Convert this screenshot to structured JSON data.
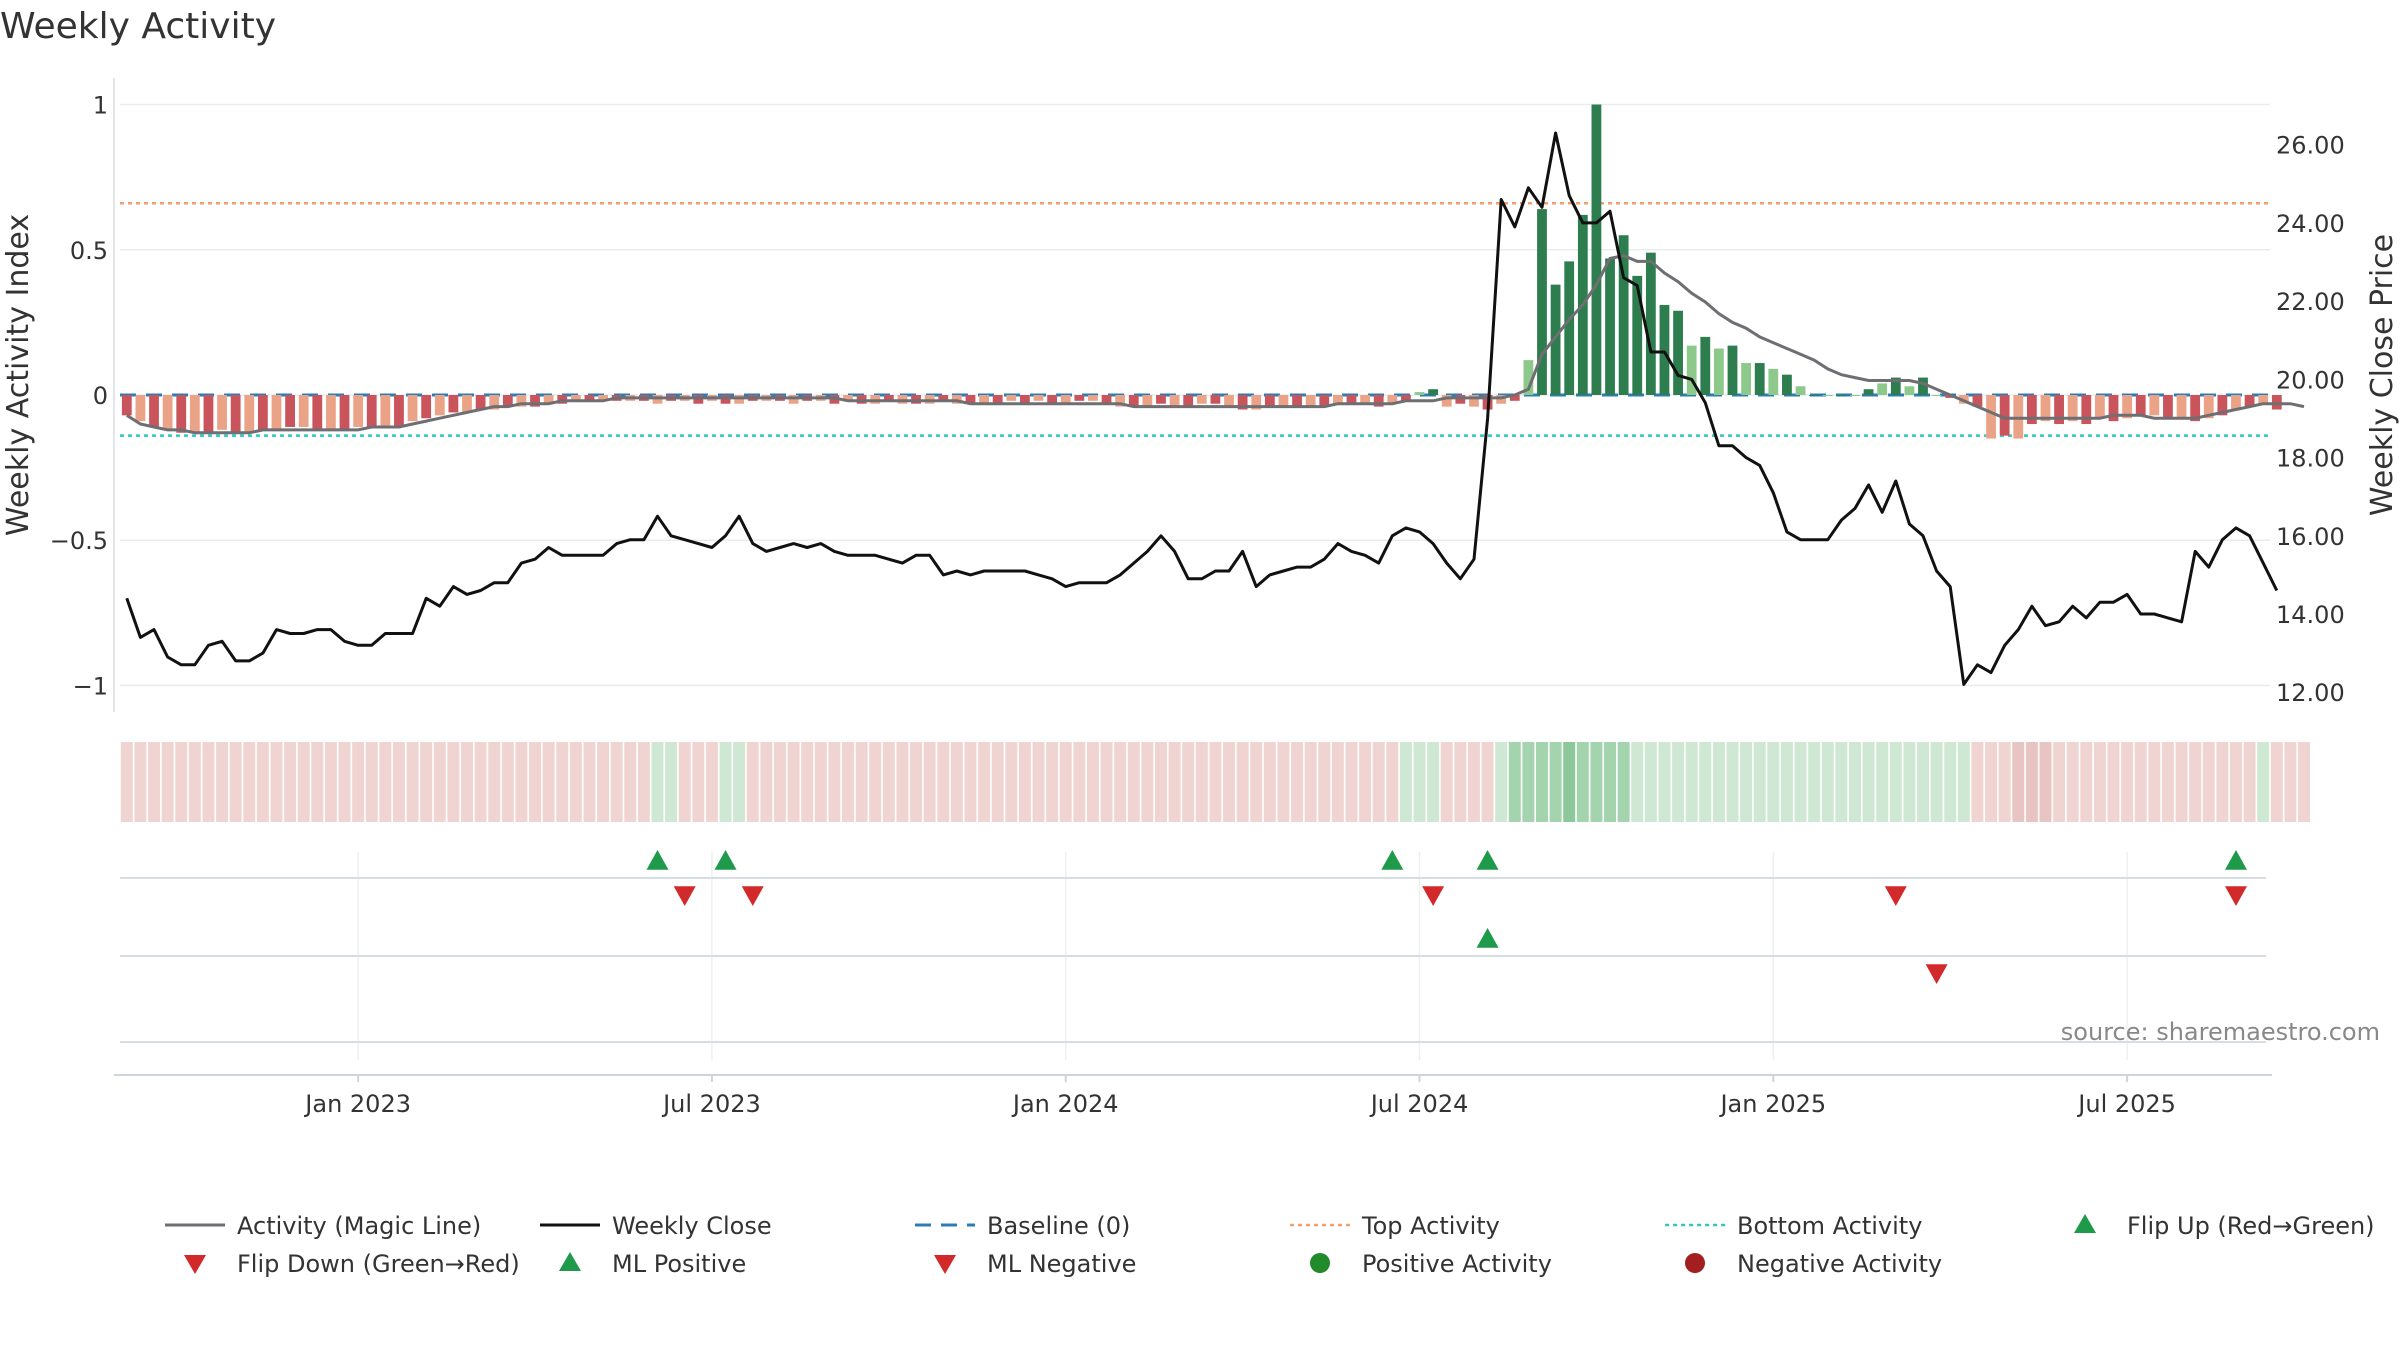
{
  "chart_data": {
    "type": "bar",
    "title": "Weekly Activity",
    "ylabel_left": "Weekly Activity Index",
    "ylabel_right": "Weekly Close Price",
    "source": "source: sharemaestro.com",
    "left_ylim": [
      -1.05,
      1.05
    ],
    "left_ticks": [
      {
        "value": 1,
        "label": "1"
      },
      {
        "value": 0.5,
        "label": "0.5"
      },
      {
        "value": 0,
        "label": "0"
      },
      {
        "value": -0.5,
        "label": "−0.5"
      },
      {
        "value": -1,
        "label": "−1"
      }
    ],
    "right_ylim": [
      11.8,
      27.4
    ],
    "right_ticks": [
      {
        "value": 26,
        "label": "26.00"
      },
      {
        "value": 24,
        "label": "24.00"
      },
      {
        "value": 22,
        "label": "22.00"
      },
      {
        "value": 20,
        "label": "20.00"
      },
      {
        "value": 18,
        "label": "18.00"
      },
      {
        "value": 16,
        "label": "16.00"
      },
      {
        "value": 14,
        "label": "14.00"
      },
      {
        "value": 12,
        "label": "12.00"
      }
    ],
    "x_ticks": [
      {
        "week": 17,
        "label": "Jan 2023"
      },
      {
        "week": 43,
        "label": "Jul 2023"
      },
      {
        "week": 69,
        "label": "Jan 2024"
      },
      {
        "week": 95,
        "label": "Jul 2024"
      },
      {
        "week": 121,
        "label": "Jan 2025"
      },
      {
        "week": 147,
        "label": "Jul 2025"
      }
    ],
    "weeks_count": 158,
    "top_activity": 0.66,
    "bottom_activity": -0.14,
    "baseline": 0,
    "activity_index": [
      -0.07,
      -0.09,
      -0.11,
      -0.12,
      -0.13,
      -0.13,
      -0.13,
      -0.12,
      -0.13,
      -0.13,
      -0.12,
      -0.12,
      -0.11,
      -0.11,
      -0.12,
      -0.12,
      -0.12,
      -0.11,
      -0.11,
      -0.11,
      -0.11,
      -0.09,
      -0.08,
      -0.07,
      -0.06,
      -0.06,
      -0.05,
      -0.05,
      -0.04,
      -0.04,
      -0.04,
      -0.03,
      -0.03,
      -0.02,
      -0.02,
      -0.02,
      -0.02,
      -0.02,
      -0.02,
      -0.03,
      -0.02,
      -0.02,
      -0.03,
      -0.02,
      -0.03,
      -0.03,
      -0.02,
      -0.02,
      -0.02,
      -0.03,
      -0.02,
      -0.02,
      -0.03,
      -0.02,
      -0.03,
      -0.03,
      -0.02,
      -0.03,
      -0.03,
      -0.03,
      -0.02,
      -0.03,
      -0.03,
      -0.03,
      -0.03,
      -0.02,
      -0.03,
      -0.02,
      -0.03,
      -0.03,
      -0.02,
      -0.02,
      -0.03,
      -0.04,
      -0.04,
      -0.04,
      -0.03,
      -0.04,
      -0.04,
      -0.03,
      -0.03,
      -0.04,
      -0.05,
      -0.05,
      -0.04,
      -0.04,
      -0.04,
      -0.04,
      -0.04,
      -0.03,
      -0.03,
      -0.03,
      -0.04,
      -0.03,
      -0.02,
      0.01,
      0.02,
      -0.04,
      -0.03,
      -0.04,
      -0.05,
      -0.03,
      -0.02,
      0.12,
      0.64,
      0.38,
      0.46,
      0.62,
      1.0,
      0.47,
      0.55,
      0.41,
      0.49,
      0.31,
      0.29,
      0.17,
      0.2,
      0.16,
      0.17,
      0.11,
      0.11,
      0.09,
      0.07,
      0.03,
      0.0,
      0.0,
      0.0,
      0.0,
      0.02,
      0.04,
      0.06,
      0.03,
      0.06,
      0.0,
      -0.01,
      -0.03,
      -0.04,
      -0.15,
      -0.14,
      -0.15,
      -0.1,
      -0.09,
      -0.1,
      -0.09,
      -0.1,
      -0.08,
      -0.09,
      -0.08,
      -0.07,
      -0.07,
      -0.08,
      -0.08,
      -0.09,
      -0.08,
      -0.07,
      -0.05,
      -0.04,
      -0.03,
      -0.05
    ],
    "magic_line": [
      -0.07,
      -0.1,
      -0.11,
      -0.12,
      -0.12,
      -0.13,
      -0.13,
      -0.13,
      -0.13,
      -0.13,
      -0.12,
      -0.12,
      -0.12,
      -0.12,
      -0.12,
      -0.12,
      -0.12,
      -0.12,
      -0.11,
      -0.11,
      -0.11,
      -0.1,
      -0.09,
      -0.08,
      -0.07,
      -0.06,
      -0.05,
      -0.04,
      -0.04,
      -0.03,
      -0.03,
      -0.03,
      -0.02,
      -0.02,
      -0.02,
      -0.02,
      -0.01,
      -0.01,
      -0.01,
      -0.01,
      -0.01,
      -0.01,
      -0.01,
      -0.01,
      -0.01,
      -0.01,
      -0.01,
      -0.01,
      -0.01,
      -0.01,
      -0.01,
      -0.01,
      -0.01,
      -0.02,
      -0.02,
      -0.02,
      -0.02,
      -0.02,
      -0.02,
      -0.02,
      -0.02,
      -0.02,
      -0.03,
      -0.03,
      -0.03,
      -0.03,
      -0.03,
      -0.03,
      -0.03,
      -0.03,
      -0.03,
      -0.03,
      -0.03,
      -0.03,
      -0.04,
      -0.04,
      -0.04,
      -0.04,
      -0.04,
      -0.04,
      -0.04,
      -0.04,
      -0.04,
      -0.04,
      -0.04,
      -0.04,
      -0.04,
      -0.04,
      -0.04,
      -0.03,
      -0.03,
      -0.03,
      -0.03,
      -0.03,
      -0.02,
      -0.02,
      -0.02,
      -0.01,
      -0.01,
      -0.01,
      -0.01,
      -0.01,
      0.0,
      0.02,
      0.14,
      0.2,
      0.26,
      0.31,
      0.38,
      0.47,
      0.48,
      0.46,
      0.46,
      0.42,
      0.39,
      0.35,
      0.32,
      0.28,
      0.25,
      0.23,
      0.2,
      0.18,
      0.16,
      0.14,
      0.12,
      0.09,
      0.07,
      0.06,
      0.05,
      0.05,
      0.05,
      0.05,
      0.04,
      0.02,
      0.0,
      -0.02,
      -0.04,
      -0.06,
      -0.08,
      -0.08,
      -0.08,
      -0.08,
      -0.08,
      -0.08,
      -0.08,
      -0.08,
      -0.07,
      -0.07,
      -0.07,
      -0.08,
      -0.08,
      -0.08,
      -0.08,
      -0.07,
      -0.06,
      -0.05,
      -0.04,
      -0.03,
      -0.03,
      -0.03,
      -0.04
    ],
    "weekly_close": [
      14.4,
      13.4,
      13.6,
      12.9,
      12.7,
      12.7,
      13.2,
      13.3,
      12.8,
      12.8,
      13.0,
      13.6,
      13.5,
      13.5,
      13.6,
      13.6,
      13.3,
      13.2,
      13.2,
      13.5,
      13.5,
      13.5,
      14.4,
      14.2,
      14.7,
      14.5,
      14.6,
      14.8,
      14.8,
      15.3,
      15.4,
      15.7,
      15.5,
      15.5,
      15.5,
      15.5,
      15.8,
      15.9,
      15.9,
      16.5,
      16.0,
      15.9,
      15.8,
      15.7,
      16.0,
      16.5,
      15.8,
      15.6,
      15.7,
      15.8,
      15.7,
      15.8,
      15.6,
      15.5,
      15.5,
      15.5,
      15.4,
      15.3,
      15.5,
      15.5,
      15.0,
      15.1,
      15.0,
      15.1,
      15.1,
      15.1,
      15.1,
      15.0,
      14.9,
      14.7,
      14.8,
      14.8,
      14.8,
      15.0,
      15.3,
      15.6,
      16.0,
      15.6,
      14.9,
      14.9,
      15.1,
      15.1,
      15.6,
      14.7,
      15.0,
      15.1,
      15.2,
      15.2,
      15.4,
      15.8,
      15.6,
      15.5,
      15.3,
      16.0,
      16.2,
      16.1,
      15.8,
      15.3,
      14.9,
      15.4,
      19.0,
      24.6,
      23.9,
      24.9,
      24.4,
      26.3,
      24.7,
      24.0,
      24.0,
      24.3,
      22.6,
      22.4,
      20.7,
      20.7,
      20.1,
      20.0,
      19.4,
      18.3,
      18.3,
      18.0,
      17.8,
      17.1,
      16.1,
      15.9,
      15.9,
      15.9,
      16.4,
      16.7,
      17.3,
      16.6,
      17.4,
      16.3,
      16.0,
      15.1,
      14.7,
      12.2,
      12.7,
      12.5,
      13.2,
      13.6,
      14.2,
      13.7,
      13.8,
      14.2,
      13.9,
      14.3,
      14.3,
      14.5,
      14.0,
      14.0,
      13.9,
      13.8,
      15.6,
      15.2,
      15.9,
      16.2,
      16.0,
      15.3,
      14.6
    ],
    "ribbon": [
      -1,
      -1,
      -1,
      -1,
      -1,
      -1,
      -1,
      -1,
      -1,
      -1,
      -1,
      -1,
      -1,
      -1,
      -1,
      -1,
      -1,
      -1,
      -1,
      -1,
      -1,
      -1,
      -1,
      -1,
      -1,
      -1,
      -1,
      -1,
      -1,
      -1,
      -1,
      -1,
      -1,
      -1,
      -1,
      -1,
      -1,
      -1,
      -1,
      1,
      1,
      -1,
      -1,
      -1,
      1,
      1,
      -1,
      -1,
      -1,
      -1,
      -1,
      -1,
      -1,
      -1,
      -1,
      -1,
      -1,
      -1,
      -1,
      -1,
      -1,
      -1,
      -1,
      -1,
      -1,
      -1,
      -1,
      -1,
      -1,
      -1,
      -1,
      -1,
      -1,
      -1,
      -1,
      -1,
      -1,
      -1,
      -1,
      -1,
      -1,
      -1,
      -1,
      -1,
      -1,
      -1,
      -1,
      -1,
      -1,
      -1,
      -1,
      -1,
      -1,
      -1,
      1,
      1,
      1,
      -1,
      -1,
      -1,
      -1,
      1,
      2,
      2,
      2,
      2,
      3,
      2,
      2,
      2,
      2,
      1,
      1,
      1,
      1,
      1,
      1,
      1,
      1,
      1,
      1,
      1,
      1,
      1,
      1,
      1,
      1,
      1,
      1,
      1,
      1,
      1,
      1,
      1,
      1,
      1,
      -1,
      -1,
      -1,
      -2,
      -2,
      -2,
      -1,
      -1,
      -1,
      -1,
      -1,
      -1,
      -1,
      -1,
      -1,
      -1,
      -1,
      -1,
      -1,
      -1,
      -1,
      1,
      -1,
      -1,
      -1
    ],
    "flip_up": [
      39,
      44,
      93,
      100,
      155
    ],
    "flip_down": [
      41,
      46,
      96,
      130,
      155
    ],
    "ml_positive": [
      100
    ],
    "ml_negative": [
      133
    ],
    "legend": [
      {
        "key": "magic",
        "label": "Activity (Magic Line)"
      },
      {
        "key": "close",
        "label": "Weekly Close"
      },
      {
        "key": "baseline",
        "label": "Baseline (0)"
      },
      {
        "key": "top",
        "label": "Top Activity"
      },
      {
        "key": "bottom",
        "label": "Bottom Activity"
      },
      {
        "key": "flip-up",
        "label": "Flip Up (Red→Green)"
      },
      {
        "key": "flip-down",
        "label": "Flip Down (Green→Red)"
      },
      {
        "key": "ml-pos",
        "label": "ML Positive"
      },
      {
        "key": "ml-neg",
        "label": "ML Negative"
      },
      {
        "key": "pos",
        "label": "Positive Activity"
      },
      {
        "key": "neg",
        "label": "Negative Activity"
      }
    ],
    "colors": {
      "magic": "#6e6e73",
      "close": "#111111",
      "baseline": "#2a7db7",
      "top": "#f0a070",
      "bottom": "#2fc8c0",
      "flip_up": "#1f9a4a",
      "flip_down": "#d22a2a",
      "pos_strong": "#2e7d4f",
      "pos_light": "#8cc98a",
      "neg_strong": "#c9545c",
      "neg_light": "#eba387",
      "pos_dot": "#218a2b",
      "neg_dot": "#a31f1f",
      "ribbon_pos": [
        "#cfe8d3",
        "#a4d4ad",
        "#8cc89a",
        "#3ea357"
      ],
      "ribbon_neg": [
        "#f0d4d2",
        "#e8c4c2"
      ]
    }
  }
}
